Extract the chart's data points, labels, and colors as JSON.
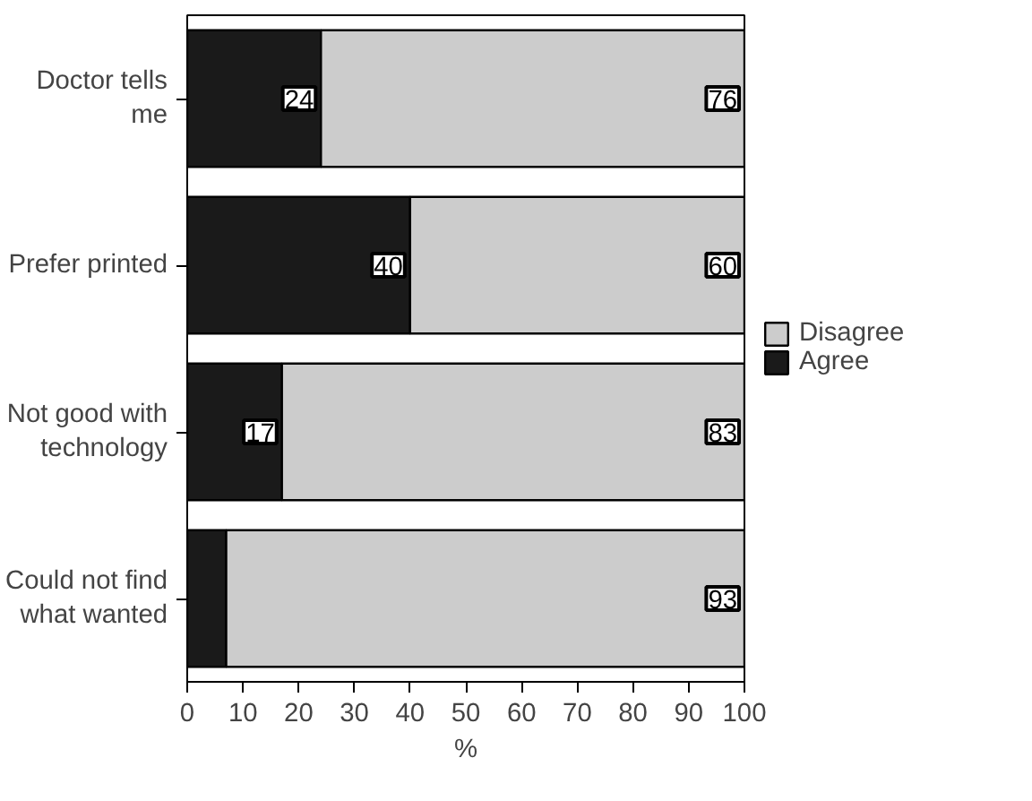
{
  "chart_data": {
    "type": "bar",
    "orientation": "horizontal",
    "stacked": true,
    "categories": [
      "Doctor tells me",
      "Prefer printed",
      "Not good with technology",
      "Could not find what wanted"
    ],
    "series": [
      {
        "name": "Agree",
        "color": "#1a1a1a",
        "values": [
          24,
          40,
          17,
          7
        ],
        "value_labels": [
          "24",
          "40",
          "17",
          null
        ]
      },
      {
        "name": "Disagree",
        "color": "#cccccc",
        "values": [
          76,
          60,
          83,
          93
        ],
        "value_labels": [
          "76",
          "60",
          "83",
          "93"
        ]
      }
    ],
    "xlabel": "%",
    "xlim": [
      0,
      100
    ],
    "xticks": [
      0,
      10,
      20,
      30,
      40,
      50,
      60,
      70,
      80,
      90,
      100
    ],
    "legend": "right",
    "grid": false
  }
}
